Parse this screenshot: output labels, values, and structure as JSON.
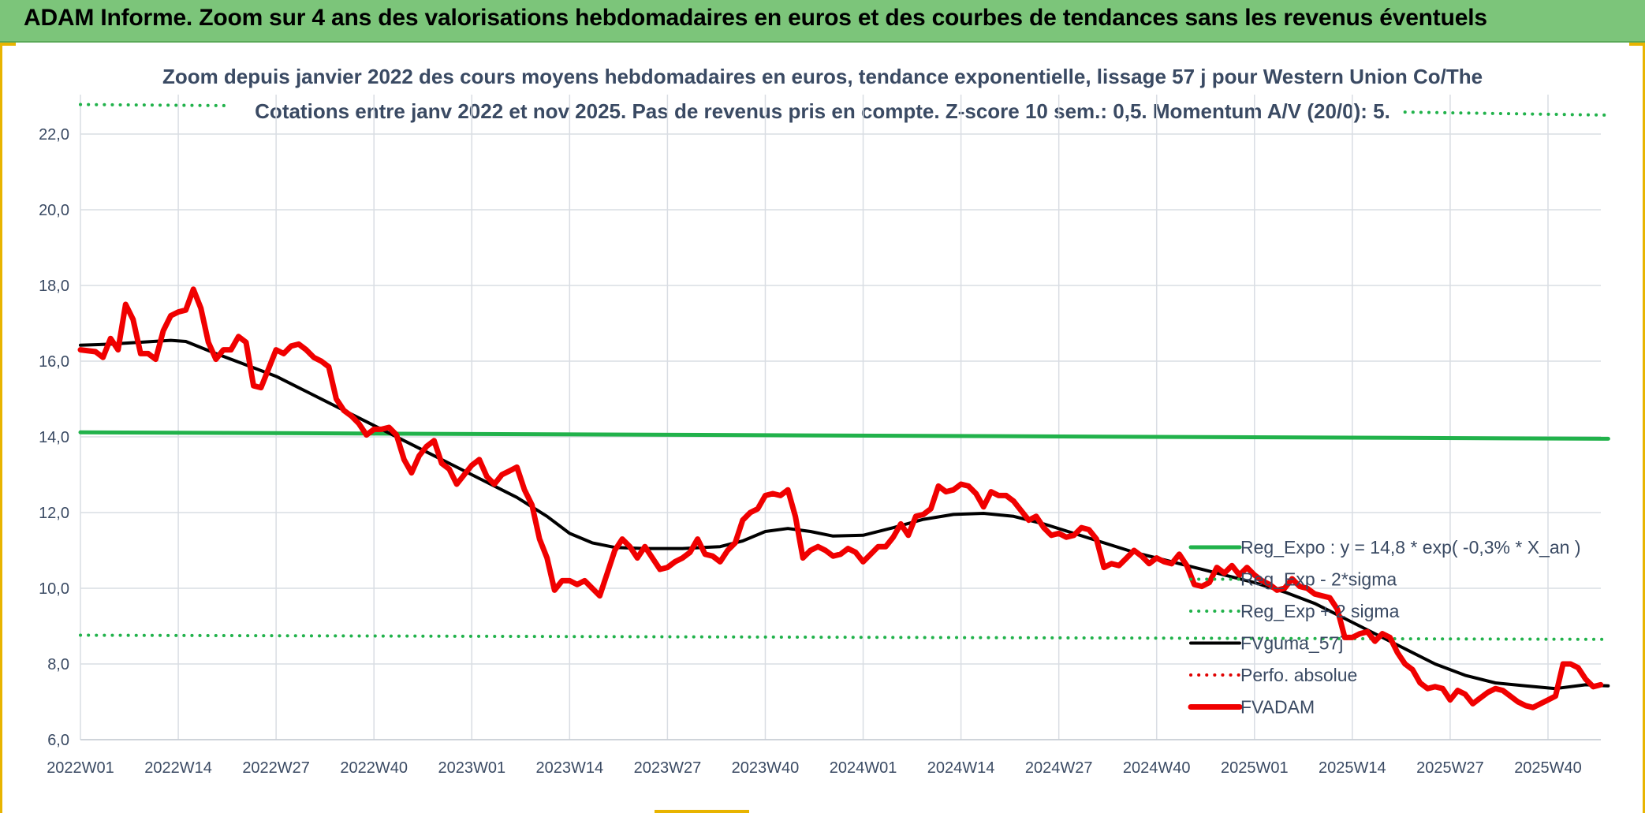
{
  "banner": {
    "title": "ADAM Informe. Zoom sur 4 ans des valorisations hebdomadaires en euros et des courbes de tendances sans les revenus éventuels"
  },
  "chart_data": {
    "type": "line",
    "title": "Zoom depuis janvier 2022 des cours moyens hebdomadaires en euros, tendance exponentielle, lissage 57 j pour Western Union Co/The",
    "subtitle": "Cotations entre janv 2022 et nov 2025. Pas de revenus pris en compte. Z-score 10 sem.: 0,5. Momentum A/V (20/0): 5.",
    "ylim": [
      6,
      22.6
    ],
    "yticks": [
      6,
      8,
      10,
      12,
      14,
      16,
      18,
      20,
      22
    ],
    "ytick_labels": [
      "6,0",
      "8,0",
      "10,0",
      "12,0",
      "14,0",
      "16,0",
      "18,0",
      "20,0",
      "22,0"
    ],
    "x_count": 200,
    "x_ticks": [
      {
        "i": 0,
        "label": "2022W01"
      },
      {
        "i": 13,
        "label": "2022W14"
      },
      {
        "i": 26,
        "label": "2022W27"
      },
      {
        "i": 39,
        "label": "2022W40"
      },
      {
        "i": 52,
        "label": "2023W01"
      },
      {
        "i": 65,
        "label": "2023W14"
      },
      {
        "i": 78,
        "label": "2023W27"
      },
      {
        "i": 91,
        "label": "2023W40"
      },
      {
        "i": 104,
        "label": "2024W01"
      },
      {
        "i": 117,
        "label": "2024W14"
      },
      {
        "i": 130,
        "label": "2024W27"
      },
      {
        "i": 143,
        "label": "2024W40"
      },
      {
        "i": 156,
        "label": "2025W01"
      },
      {
        "i": 169,
        "label": "2025W14"
      },
      {
        "i": 182,
        "label": "2025W27"
      },
      {
        "i": 195,
        "label": "2025W40"
      }
    ],
    "grid": true,
    "legend_position": "bottom-right",
    "series": [
      {
        "name": "Reg_Expo : y = 14,8 * exp( -0,3% *  X_an )",
        "style": "solid",
        "color": "#21b24b",
        "width": 5,
        "start": 14.12,
        "end": 13.95
      },
      {
        "name": "Reg_Exp - 2*sigma",
        "style": "dotted",
        "color": "#21b24b",
        "width": 4,
        "start": 8.76,
        "end": 8.65
      },
      {
        "name": "Reg_Exp + 2 sigma",
        "style": "dotted",
        "color": "#21b24b",
        "width": 4,
        "segments": [
          [
            0,
            20,
            22.78,
            22.75
          ],
          [
            176,
            203,
            22.58,
            22.5
          ]
        ]
      },
      {
        "name": "FVguma_57j",
        "style": "solid",
        "color": "#000000",
        "width": 4,
        "points": [
          [
            0,
            16.42
          ],
          [
            4,
            16.45
          ],
          [
            8,
            16.5
          ],
          [
            12,
            16.55
          ],
          [
            14,
            16.52
          ],
          [
            18,
            16.2
          ],
          [
            22,
            15.9
          ],
          [
            26,
            15.6
          ],
          [
            30,
            15.2
          ],
          [
            34,
            14.8
          ],
          [
            38,
            14.4
          ],
          [
            42,
            14.0
          ],
          [
            46,
            13.6
          ],
          [
            50,
            13.2
          ],
          [
            54,
            12.8
          ],
          [
            58,
            12.4
          ],
          [
            62,
            11.9
          ],
          [
            65,
            11.45
          ],
          [
            68,
            11.2
          ],
          [
            71,
            11.08
          ],
          [
            75,
            11.05
          ],
          [
            80,
            11.05
          ],
          [
            85,
            11.1
          ],
          [
            88,
            11.25
          ],
          [
            91,
            11.5
          ],
          [
            94,
            11.58
          ],
          [
            97,
            11.5
          ],
          [
            100,
            11.38
          ],
          [
            104,
            11.4
          ],
          [
            108,
            11.6
          ],
          [
            112,
            11.82
          ],
          [
            116,
            11.95
          ],
          [
            120,
            11.98
          ],
          [
            124,
            11.9
          ],
          [
            128,
            11.7
          ],
          [
            132,
            11.45
          ],
          [
            136,
            11.2
          ],
          [
            140,
            10.95
          ],
          [
            144,
            10.75
          ],
          [
            148,
            10.55
          ],
          [
            152,
            10.35
          ],
          [
            156,
            10.15
          ],
          [
            160,
            9.9
          ],
          [
            164,
            9.6
          ],
          [
            168,
            9.2
          ],
          [
            172,
            8.8
          ],
          [
            176,
            8.4
          ],
          [
            180,
            8.0
          ],
          [
            184,
            7.7
          ],
          [
            188,
            7.5
          ],
          [
            192,
            7.42
          ],
          [
            196,
            7.35
          ],
          [
            200,
            7.45
          ],
          [
            203,
            7.42
          ]
        ]
      },
      {
        "name": "Perfo. absolue",
        "style": "dotted",
        "color": "#e00000",
        "width": 4,
        "points": []
      },
      {
        "name": "FVADAM",
        "style": "solid",
        "color": "#f00000",
        "width": 7,
        "points": [
          [
            0,
            16.3
          ],
          [
            2,
            16.25
          ],
          [
            3,
            16.1
          ],
          [
            4,
            16.6
          ],
          [
            5,
            16.3
          ],
          [
            6,
            17.5
          ],
          [
            7,
            17.1
          ],
          [
            8,
            16.2
          ],
          [
            9,
            16.2
          ],
          [
            10,
            16.05
          ],
          [
            11,
            16.8
          ],
          [
            12,
            17.2
          ],
          [
            13,
            17.3
          ],
          [
            14,
            17.35
          ],
          [
            15,
            17.9
          ],
          [
            16,
            17.4
          ],
          [
            17,
            16.5
          ],
          [
            18,
            16.05
          ],
          [
            19,
            16.3
          ],
          [
            20,
            16.3
          ],
          [
            21,
            16.65
          ],
          [
            22,
            16.5
          ],
          [
            23,
            15.35
          ],
          [
            24,
            15.3
          ],
          [
            25,
            15.8
          ],
          [
            26,
            16.3
          ],
          [
            27,
            16.2
          ],
          [
            28,
            16.4
          ],
          [
            29,
            16.45
          ],
          [
            30,
            16.3
          ],
          [
            31,
            16.1
          ],
          [
            32,
            16.0
          ],
          [
            33,
            15.85
          ],
          [
            34,
            15.0
          ],
          [
            35,
            14.7
          ],
          [
            36,
            14.55
          ],
          [
            37,
            14.35
          ],
          [
            38,
            14.05
          ],
          [
            39,
            14.2
          ],
          [
            40,
            14.2
          ],
          [
            41,
            14.25
          ],
          [
            42,
            14.05
          ],
          [
            43,
            13.4
          ],
          [
            44,
            13.05
          ],
          [
            45,
            13.5
          ],
          [
            46,
            13.75
          ],
          [
            47,
            13.9
          ],
          [
            48,
            13.3
          ],
          [
            49,
            13.15
          ],
          [
            50,
            12.75
          ],
          [
            51,
            13.0
          ],
          [
            52,
            13.25
          ],
          [
            53,
            13.4
          ],
          [
            54,
            12.95
          ],
          [
            55,
            12.75
          ],
          [
            56,
            13.0
          ],
          [
            57,
            13.1
          ],
          [
            58,
            13.2
          ],
          [
            59,
            12.6
          ],
          [
            60,
            12.2
          ],
          [
            61,
            11.3
          ],
          [
            62,
            10.8
          ],
          [
            63,
            9.95
          ],
          [
            64,
            10.2
          ],
          [
            65,
            10.2
          ],
          [
            66,
            10.1
          ],
          [
            67,
            10.2
          ],
          [
            68,
            10.0
          ],
          [
            69,
            9.8
          ],
          [
            70,
            10.4
          ],
          [
            71,
            11.0
          ],
          [
            72,
            11.3
          ],
          [
            73,
            11.1
          ],
          [
            74,
            10.8
          ],
          [
            75,
            11.1
          ],
          [
            76,
            10.8
          ],
          [
            77,
            10.5
          ],
          [
            78,
            10.55
          ],
          [
            79,
            10.7
          ],
          [
            80,
            10.8
          ],
          [
            81,
            10.95
          ],
          [
            82,
            11.3
          ],
          [
            83,
            10.9
          ],
          [
            84,
            10.85
          ],
          [
            85,
            10.7
          ],
          [
            86,
            11.0
          ],
          [
            87,
            11.2
          ],
          [
            88,
            11.8
          ],
          [
            89,
            12.0
          ],
          [
            90,
            12.1
          ],
          [
            91,
            12.45
          ],
          [
            92,
            12.5
          ],
          [
            93,
            12.45
          ],
          [
            94,
            12.6
          ],
          [
            95,
            11.9
          ],
          [
            96,
            10.8
          ],
          [
            97,
            11.0
          ],
          [
            98,
            11.1
          ],
          [
            99,
            11.0
          ],
          [
            100,
            10.85
          ],
          [
            101,
            10.9
          ],
          [
            102,
            11.05
          ],
          [
            103,
            10.95
          ],
          [
            104,
            10.7
          ],
          [
            105,
            10.9
          ],
          [
            106,
            11.1
          ],
          [
            107,
            11.1
          ],
          [
            108,
            11.35
          ],
          [
            109,
            11.7
          ],
          [
            110,
            11.4
          ],
          [
            111,
            11.9
          ],
          [
            112,
            11.95
          ],
          [
            113,
            12.1
          ],
          [
            114,
            12.7
          ],
          [
            115,
            12.55
          ],
          [
            116,
            12.6
          ],
          [
            117,
            12.75
          ],
          [
            118,
            12.7
          ],
          [
            119,
            12.5
          ],
          [
            120,
            12.15
          ],
          [
            121,
            12.55
          ],
          [
            122,
            12.45
          ],
          [
            123,
            12.45
          ],
          [
            124,
            12.3
          ],
          [
            125,
            12.05
          ],
          [
            126,
            11.8
          ],
          [
            127,
            11.9
          ],
          [
            128,
            11.6
          ],
          [
            129,
            11.4
          ],
          [
            130,
            11.45
          ],
          [
            131,
            11.35
          ],
          [
            132,
            11.4
          ],
          [
            133,
            11.6
          ],
          [
            134,
            11.55
          ],
          [
            135,
            11.3
          ],
          [
            136,
            10.55
          ],
          [
            137,
            10.65
          ],
          [
            138,
            10.6
          ],
          [
            139,
            10.8
          ],
          [
            140,
            11.0
          ],
          [
            141,
            10.85
          ],
          [
            142,
            10.65
          ],
          [
            143,
            10.8
          ],
          [
            144,
            10.7
          ],
          [
            145,
            10.65
          ],
          [
            146,
            10.9
          ],
          [
            147,
            10.6
          ],
          [
            148,
            10.1
          ],
          [
            149,
            10.05
          ],
          [
            150,
            10.15
          ],
          [
            151,
            10.55
          ],
          [
            152,
            10.4
          ],
          [
            153,
            10.6
          ],
          [
            154,
            10.35
          ],
          [
            155,
            10.55
          ],
          [
            156,
            10.35
          ],
          [
            157,
            10.2
          ],
          [
            158,
            10.1
          ],
          [
            159,
            9.95
          ],
          [
            160,
            10.0
          ],
          [
            161,
            10.25
          ],
          [
            162,
            10.05
          ],
          [
            163,
            10.0
          ],
          [
            164,
            9.85
          ],
          [
            165,
            9.8
          ],
          [
            166,
            9.75
          ],
          [
            167,
            9.45
          ],
          [
            168,
            8.7
          ],
          [
            169,
            8.7
          ],
          [
            170,
            8.8
          ],
          [
            171,
            8.85
          ],
          [
            172,
            8.6
          ],
          [
            173,
            8.8
          ],
          [
            174,
            8.7
          ],
          [
            175,
            8.3
          ],
          [
            176,
            8.0
          ],
          [
            177,
            7.85
          ],
          [
            178,
            7.5
          ],
          [
            179,
            7.35
          ],
          [
            180,
            7.4
          ],
          [
            181,
            7.35
          ],
          [
            182,
            7.05
          ],
          [
            183,
            7.3
          ],
          [
            184,
            7.2
          ],
          [
            185,
            6.95
          ],
          [
            186,
            7.1
          ],
          [
            187,
            7.25
          ],
          [
            188,
            7.35
          ],
          [
            189,
            7.3
          ],
          [
            190,
            7.15
          ],
          [
            191,
            7.0
          ],
          [
            192,
            6.9
          ],
          [
            193,
            6.85
          ],
          [
            194,
            6.95
          ],
          [
            195,
            7.05
          ],
          [
            196,
            7.15
          ],
          [
            197,
            8.0
          ],
          [
            198,
            8.0
          ],
          [
            199,
            7.9
          ],
          [
            200,
            7.6
          ],
          [
            201,
            7.4
          ],
          [
            202,
            7.45
          ]
        ]
      }
    ]
  }
}
